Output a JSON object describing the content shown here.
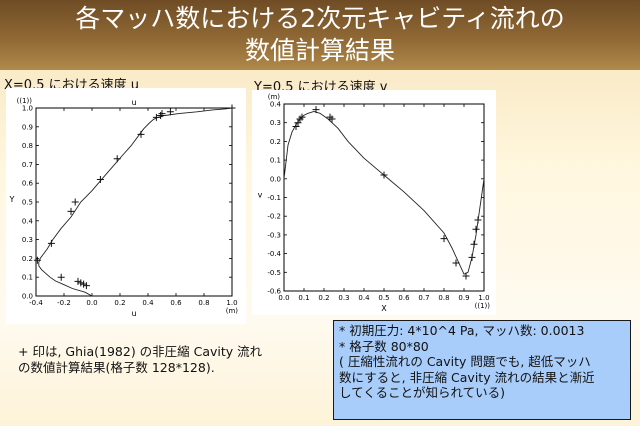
{
  "title": {
    "line1": "各マッハ数における2次元キャビティ流れの",
    "line2": "数値計算結果"
  },
  "captions": {
    "left": "X=0.5 における速度 u",
    "right": "Y=0.5 における速度 v"
  },
  "note": {
    "line1": "+ 印は, Ghia(1982) の非圧縮 Cavity 流れ",
    "line2": "の数値計算結果(格子数 128*128)."
  },
  "info": {
    "line1": "* 初期圧力: 4*10^4 Pa, マッハ数: 0.0013",
    "line2": "* 格子数 80*80",
    "line3": "( 圧縮性流れの Cavity 問題でも, 超低マッハ",
    "line4": "数にすると, 非圧縮 Cavity 流れの結果と漸近",
    "line5": "してくることが知られている)"
  },
  "chart_data": [
    {
      "type": "line",
      "top_label": "u",
      "xlabel": "u",
      "ylabel": "Y",
      "x_unit_label": "(m)",
      "y_unit_label": "((1))",
      "xlim": [
        -0.4,
        1.0
      ],
      "ylim": [
        0.0,
        1.0
      ],
      "xticks": [
        -0.4,
        -0.2,
        0.0,
        0.2,
        0.4,
        0.6,
        0.8,
        1.0
      ],
      "yticks": [
        0.0,
        0.1,
        0.2,
        0.3,
        0.4,
        0.5,
        0.6,
        0.7,
        0.8,
        0.9,
        1.0
      ],
      "xtick_labels": [
        "-0.4",
        "-0.2",
        "0.0",
        "0.2",
        "0.4",
        "0.6",
        "0.8",
        "1.0"
      ],
      "ytick_labels": [
        "0.0",
        "0.1",
        "0.2",
        "0.3",
        "0.4",
        "0.5",
        "0.6",
        "0.7",
        "0.8",
        "0.9",
        "1.0"
      ],
      "series": [
        {
          "style": "line",
          "x": [
            0.0,
            -0.05,
            -0.14,
            -0.2,
            -0.26,
            -0.3,
            -0.33,
            -0.36,
            -0.38,
            -0.38,
            -0.37,
            -0.35,
            -0.32,
            -0.28,
            -0.22,
            -0.15,
            -0.08,
            0.0,
            0.08,
            0.15,
            0.22,
            0.28,
            0.33,
            0.37,
            0.41,
            0.44,
            0.47,
            0.52,
            0.62,
            0.75,
            0.86,
            0.95,
            1.0
          ],
          "y": [
            0.0,
            0.02,
            0.04,
            0.06,
            0.08,
            0.1,
            0.12,
            0.14,
            0.16,
            0.18,
            0.2,
            0.22,
            0.25,
            0.3,
            0.36,
            0.42,
            0.5,
            0.56,
            0.63,
            0.69,
            0.75,
            0.8,
            0.85,
            0.89,
            0.92,
            0.94,
            0.95,
            0.96,
            0.97,
            0.98,
            0.99,
            0.995,
            1.0
          ]
        },
        {
          "style": "markers",
          "x": [
            -0.04,
            -0.06,
            -0.08,
            -0.1,
            -0.22,
            -0.39,
            -0.29,
            -0.15,
            -0.12,
            0.06,
            0.18,
            0.35,
            0.46,
            0.49,
            0.5,
            0.56,
            1.0
          ],
          "y": [
            0.055,
            0.063,
            0.07,
            0.078,
            0.1,
            0.19,
            0.28,
            0.45,
            0.5,
            0.62,
            0.73,
            0.86,
            0.95,
            0.96,
            0.97,
            0.98,
            1.0
          ]
        }
      ]
    },
    {
      "type": "line",
      "xlabel": "X",
      "ylabel": "v",
      "x_unit_label": "((1))",
      "y_unit_label": "(m)",
      "xlim": [
        0.0,
        1.0
      ],
      "ylim": [
        -0.6,
        0.4
      ],
      "xticks": [
        0.0,
        0.1,
        0.2,
        0.3,
        0.4,
        0.5,
        0.6,
        0.7,
        0.8,
        0.9,
        1.0
      ],
      "yticks": [
        -0.6,
        -0.5,
        -0.4,
        -0.3,
        -0.2,
        -0.1,
        0.0,
        0.1,
        0.2,
        0.3,
        0.4
      ],
      "xtick_labels": [
        "0.0",
        "0.1",
        "0.2",
        "0.3",
        "0.4",
        "0.5",
        "0.6",
        "0.7",
        "0.8",
        "0.9",
        "1.0"
      ],
      "ytick_labels": [
        "-0.6",
        "-0.5",
        "-0.4",
        "-0.3",
        "-0.2",
        "-0.1",
        "0.0",
        "0.1",
        "0.2",
        "0.3",
        "0.4"
      ],
      "series": [
        {
          "style": "line",
          "x": [
            0.0,
            0.02,
            0.04,
            0.06,
            0.08,
            0.1,
            0.12,
            0.15,
            0.18,
            0.22,
            0.27,
            0.32,
            0.4,
            0.5,
            0.6,
            0.7,
            0.8,
            0.84,
            0.87,
            0.9,
            0.92,
            0.94,
            0.96,
            0.98,
            1.0
          ],
          "y": [
            0.0,
            0.18,
            0.25,
            0.29,
            0.32,
            0.34,
            0.35,
            0.36,
            0.35,
            0.32,
            0.27,
            0.2,
            0.11,
            0.02,
            -0.07,
            -0.17,
            -0.29,
            -0.37,
            -0.44,
            -0.51,
            -0.5,
            -0.42,
            -0.3,
            -0.15,
            0.0
          ]
        },
        {
          "style": "markers",
          "x": [
            0.06,
            0.07,
            0.08,
            0.09,
            0.16,
            0.23,
            0.24,
            0.5,
            0.8,
            0.86,
            0.91,
            0.94,
            0.95,
            0.96,
            0.97
          ],
          "y": [
            0.28,
            0.3,
            0.32,
            0.33,
            0.37,
            0.33,
            0.32,
            0.02,
            -0.32,
            -0.45,
            -0.52,
            -0.42,
            -0.35,
            -0.27,
            -0.22
          ]
        }
      ]
    }
  ]
}
